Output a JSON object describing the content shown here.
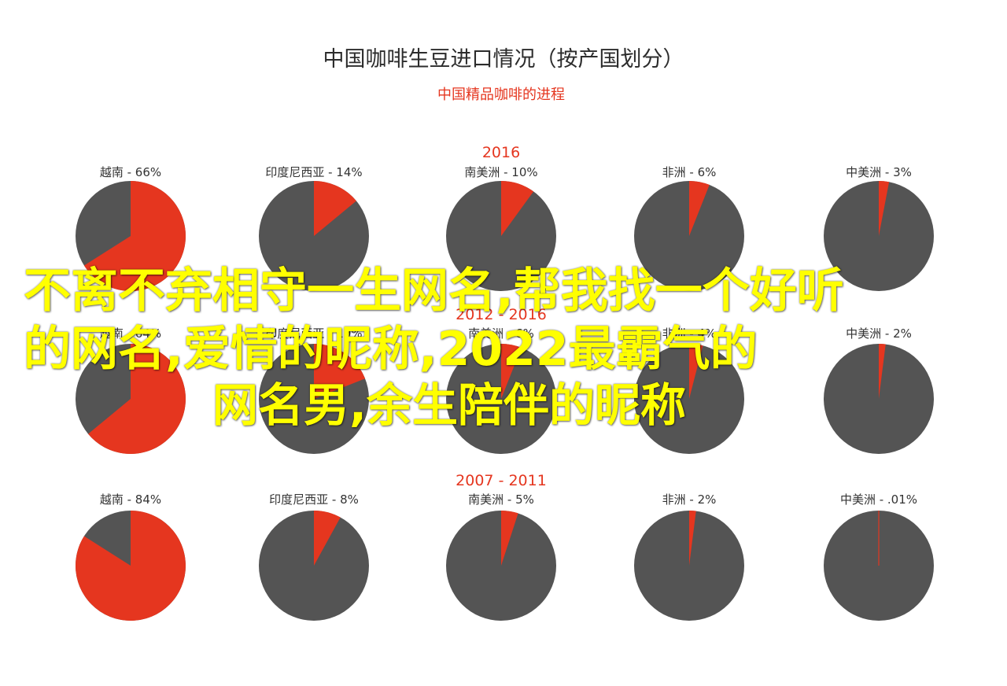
{
  "colors": {
    "accent": "#e5361f",
    "remainder": "#545454",
    "text": "#333333",
    "overlay": "#ffff00"
  },
  "chart_data": {
    "type": "pie",
    "title": "中国咖啡生豆进口情况（按产国划分）",
    "subtitle": "中国精品咖啡的进程",
    "periods": [
      {
        "label": "2016",
        "slices": [
          {
            "country": "越南",
            "value": 66,
            "label": "越南 - 66%"
          },
          {
            "country": "印度尼西亚",
            "value": 14,
            "label": "印度尼西亚 - 14%"
          },
          {
            "country": "南美洲",
            "value": 10,
            "label": "南美洲 - 10%"
          },
          {
            "country": "非洲",
            "value": 6,
            "label": "非洲 - 6%"
          },
          {
            "country": "中美洲",
            "value": 3,
            "label": "中美洲 - 3%"
          }
        ]
      },
      {
        "label": "2012 - 2016",
        "slices": [
          {
            "country": "越南",
            "value": 64,
            "label": "越南 - 64%"
          },
          {
            "country": "印度尼西亚",
            "value": 19,
            "label": "印度尼西亚 - 19%"
          },
          {
            "country": "南美洲",
            "value": 6,
            "label": "南美洲 - 6%"
          },
          {
            "country": "非洲",
            "value": 4,
            "label": "非洲 - 4%"
          },
          {
            "country": "中美洲",
            "value": 2,
            "label": "中美洲 - 2%"
          }
        ]
      },
      {
        "label": "2007 - 2011",
        "slices": [
          {
            "country": "越南",
            "value": 84,
            "label": "越南 - 84%"
          },
          {
            "country": "印度尼西亚",
            "value": 8,
            "label": "印度尼西亚 - 8%"
          },
          {
            "country": "南美洲",
            "value": 5,
            "label": "南美洲 - 5%"
          },
          {
            "country": "非洲",
            "value": 2,
            "label": "非洲 - 2%"
          },
          {
            "country": "中美洲",
            "value": 0.01,
            "label": "中美洲 - .01%"
          }
        ]
      }
    ]
  },
  "overlay": {
    "line1": "不离不弃相守一生网名,帮我找一个好听",
    "line2": "的网名,爱情的昵称,2022最霸气的",
    "line3": "网名男,余生陪伴的昵称"
  }
}
